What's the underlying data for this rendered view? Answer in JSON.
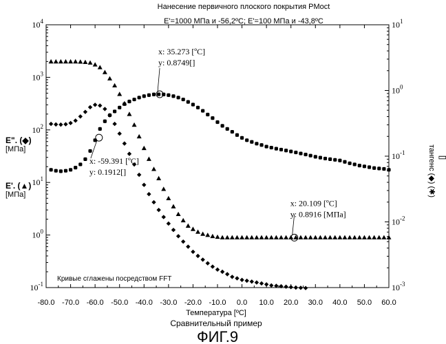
{
  "chart_data": {
    "type": "scatter",
    "title": "Нанесение первичного плоского покрытия PMoct",
    "subtitle": "E'=1000 МПа и -56,2ºC; E'=100 МПа и -43,8ºC",
    "xlabel": "Температура [ºC]",
    "xlim": [
      -80,
      60
    ],
    "x_ticks": [
      "-80.0",
      "-70.0",
      "-60.0",
      "-50.0",
      "-40.0",
      "-30.0",
      "-20.0",
      "-10.0",
      "0.0",
      "10.0",
      "20.0",
      "30.0",
      "40.0",
      "50.0",
      "60.0"
    ],
    "y_left": {
      "scale": "log",
      "lim": [
        0.1,
        10000
      ],
      "ticks": [
        {
          "base": "10",
          "exp": "4"
        },
        {
          "base": "10",
          "exp": "3"
        },
        {
          "base": "10",
          "exp": "2"
        },
        {
          "base": "10",
          "exp": "1"
        },
        {
          "base": "10",
          "exp": "0"
        },
        {
          "base": "10",
          "exp": "-1"
        }
      ],
      "label_e2": "E\". (◆)",
      "label_e2_unit": "[МПа]",
      "label_e1": "E'. (▲)",
      "label_e1_unit": "[МПа]"
    },
    "y_right": {
      "scale": "log",
      "lim": [
        0.001,
        10
      ],
      "ticks": [
        {
          "base": "10",
          "exp": "1"
        },
        {
          "base": "10",
          "exp": "0"
        },
        {
          "base": "10",
          "exp": "-1"
        },
        {
          "base": "10",
          "exp": "-2"
        },
        {
          "base": "10",
          "exp": "-3"
        }
      ],
      "label": "тангенс (◆) (✱)",
      "label_unit": "[]"
    },
    "series": [
      {
        "name": "E'",
        "axis": "left",
        "marker": "triangle",
        "x": [
          -78,
          -76,
          -74,
          -72,
          -70,
          -68,
          -66,
          -64,
          -62,
          -60,
          -58,
          -56,
          -54,
          -52,
          -50,
          -48,
          -46,
          -44,
          -42,
          -40,
          -38,
          -36,
          -34,
          -32,
          -30,
          -28,
          -26,
          -24,
          -22,
          -20,
          -18,
          -16,
          -14,
          -12,
          -10,
          -8,
          -6,
          -4,
          -2,
          0,
          2,
          4,
          6,
          8,
          10,
          12,
          14,
          16,
          18,
          20,
          22,
          24,
          26,
          28,
          30,
          32,
          34,
          36,
          38,
          40,
          42,
          44,
          46,
          48,
          50,
          52,
          54,
          56,
          58,
          60
        ],
        "y": [
          2000,
          2000,
          2000,
          2000,
          2000,
          2000,
          1980,
          1950,
          1900,
          1750,
          1550,
          1250,
          950,
          700,
          480,
          320,
          200,
          125,
          75,
          45,
          28,
          18,
          12,
          7.5,
          5,
          3.5,
          2.5,
          1.9,
          1.5,
          1.3,
          1.15,
          1.05,
          1.0,
          0.95,
          0.92,
          0.9,
          0.9,
          0.9,
          0.9,
          0.9,
          0.9,
          0.9,
          0.9,
          0.9,
          0.9,
          0.9,
          0.9,
          0.9,
          0.9,
          0.9,
          0.9,
          0.9,
          0.9,
          0.9,
          0.9,
          0.9,
          0.9,
          0.9,
          0.9,
          0.9,
          0.9,
          0.9,
          0.9,
          0.9,
          0.9,
          0.9,
          0.9,
          0.9,
          0.9,
          0.9
        ]
      },
      {
        "name": "E\"",
        "axis": "left",
        "marker": "diamond",
        "x": [
          -78,
          -76,
          -74,
          -72,
          -70,
          -68,
          -66,
          -64,
          -62,
          -60,
          -58,
          -56,
          -54,
          -52,
          -50,
          -48,
          -46,
          -44,
          -42,
          -40,
          -38,
          -36,
          -34,
          -32,
          -30,
          -28,
          -26,
          -24,
          -22,
          -20,
          -18,
          -16,
          -14,
          -12,
          -10,
          -8,
          -6,
          -4,
          -2,
          0,
          2,
          4,
          6,
          8,
          10,
          12,
          14,
          16,
          18,
          20,
          22,
          24,
          26,
          28
        ],
        "y": [
          130,
          127,
          126,
          128,
          135,
          150,
          180,
          220,
          270,
          300,
          290,
          250,
          190,
          130,
          85,
          55,
          35,
          22,
          14,
          9,
          6,
          4.2,
          3,
          2.2,
          1.65,
          1.25,
          0.95,
          0.75,
          0.6,
          0.48,
          0.4,
          0.34,
          0.29,
          0.25,
          0.22,
          0.2,
          0.18,
          0.16,
          0.15,
          0.14,
          0.135,
          0.13,
          0.125,
          0.12,
          0.115,
          0.11,
          0.108,
          0.106,
          0.104,
          0.102,
          0.1,
          0.099,
          0.098,
          0.097
        ]
      },
      {
        "name": "tan δ",
        "axis": "right",
        "marker": "filled-circle",
        "x": [
          -78,
          -76,
          -74,
          -72,
          -70,
          -68,
          -66,
          -64,
          -62,
          -60,
          -58,
          -56,
          -54,
          -52,
          -50,
          -48,
          -46,
          -44,
          -42,
          -40,
          -38,
          -36,
          -34,
          -32,
          -30,
          -28,
          -26,
          -24,
          -22,
          -20,
          -18,
          -16,
          -14,
          -12,
          -10,
          -8,
          -6,
          -4,
          -2,
          0,
          2,
          4,
          6,
          8,
          10,
          12,
          14,
          16,
          18,
          20,
          22,
          24,
          26,
          28,
          30,
          32,
          34,
          36,
          38,
          40,
          42,
          44,
          46,
          48,
          50,
          52,
          54,
          56,
          58,
          60
        ],
        "y": [
          0.062,
          0.06,
          0.059,
          0.06,
          0.062,
          0.067,
          0.075,
          0.09,
          0.12,
          0.175,
          0.26,
          0.34,
          0.42,
          0.48,
          0.55,
          0.62,
          0.68,
          0.73,
          0.78,
          0.82,
          0.85,
          0.87,
          0.875,
          0.87,
          0.85,
          0.82,
          0.78,
          0.73,
          0.67,
          0.61,
          0.55,
          0.49,
          0.43,
          0.38,
          0.33,
          0.29,
          0.26,
          0.235,
          0.21,
          0.19,
          0.175,
          0.165,
          0.155,
          0.148,
          0.14,
          0.135,
          0.13,
          0.126,
          0.122,
          0.118,
          0.114,
          0.11,
          0.106,
          0.102,
          0.098,
          0.095,
          0.092,
          0.09,
          0.088,
          0.086,
          0.082,
          0.078,
          0.075,
          0.072,
          0.07,
          0.068,
          0.066,
          0.065,
          0.064,
          0.062
        ]
      }
    ],
    "annotations": [
      {
        "x": -33.6,
        "y": 0.8749,
        "axis": "right",
        "line1": "x: 35.273 [ºC]",
        "line2": "y: 0.8749[]"
      },
      {
        "x": -58.4,
        "y": 0.1912,
        "axis": "right",
        "line1": "x: -59.391 [ºC]",
        "line2": "y: 0.1912[]"
      },
      {
        "x": 21.4,
        "y": 0.8916,
        "axis": "left",
        "line1": "x: 20.109 [ºC]",
        "line2": "y: 0.8916 [МПа]"
      }
    ],
    "note": "Кривые сглажены посредством FFT",
    "caption": "Сравнительный пример",
    "figure_label": "ФИГ.9",
    "grid": false,
    "legend": "none"
  }
}
